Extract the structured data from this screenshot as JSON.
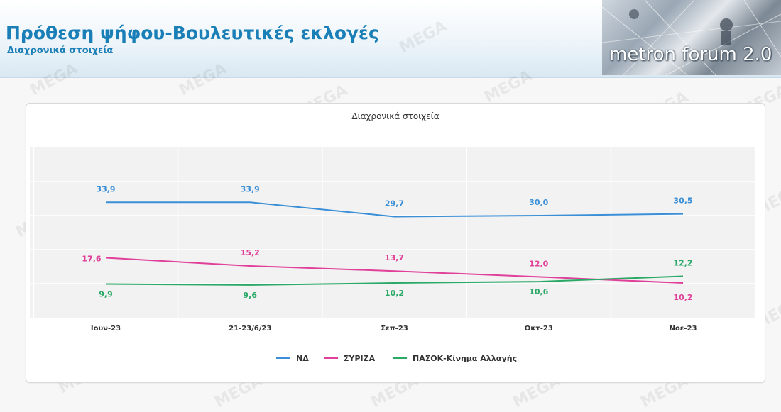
{
  "header": {
    "title": "Πρόθεση ψήφου-Βουλευτικές εκλογές",
    "subtitle": "Διαχρονικά στοιχεία",
    "logo_text": "metron forum 2.0"
  },
  "watermark": "MEGA",
  "colors": {
    "title": "#1a7fb6",
    "plot_band": "#f2f2f2"
  },
  "chart_data": {
    "type": "line",
    "title": "Διαχρονικά στοιχεία",
    "categories": [
      "Ιουν-23",
      "21-23/6/23",
      "Σεπ-23",
      "Οκτ-23",
      "Νοε-23"
    ],
    "ylim": [
      0,
      50
    ],
    "grid": true,
    "legend_position": "bottom",
    "series": [
      {
        "name": "ΝΔ",
        "color": "#3a8fd6",
        "values": [
          33.9,
          33.9,
          29.7,
          30.0,
          30.5
        ],
        "labels": [
          "33,9",
          "33,9",
          "29,7",
          "30,0",
          "30,5"
        ]
      },
      {
        "name": "ΣΥΡΙΖΑ",
        "color": "#e0409a",
        "values": [
          17.6,
          15.2,
          13.7,
          12.0,
          10.2
        ],
        "labels": [
          "17,6",
          "15,2",
          "13,7",
          "12,0",
          "10,2"
        ]
      },
      {
        "name": "ΠΑΣΟΚ-Κίνημα Αλλαγής",
        "color": "#2aa866",
        "values": [
          9.9,
          9.6,
          10.2,
          10.6,
          12.2
        ],
        "labels": [
          "9,9",
          "9,6",
          "10,2",
          "10,6",
          "12,2"
        ]
      }
    ]
  }
}
